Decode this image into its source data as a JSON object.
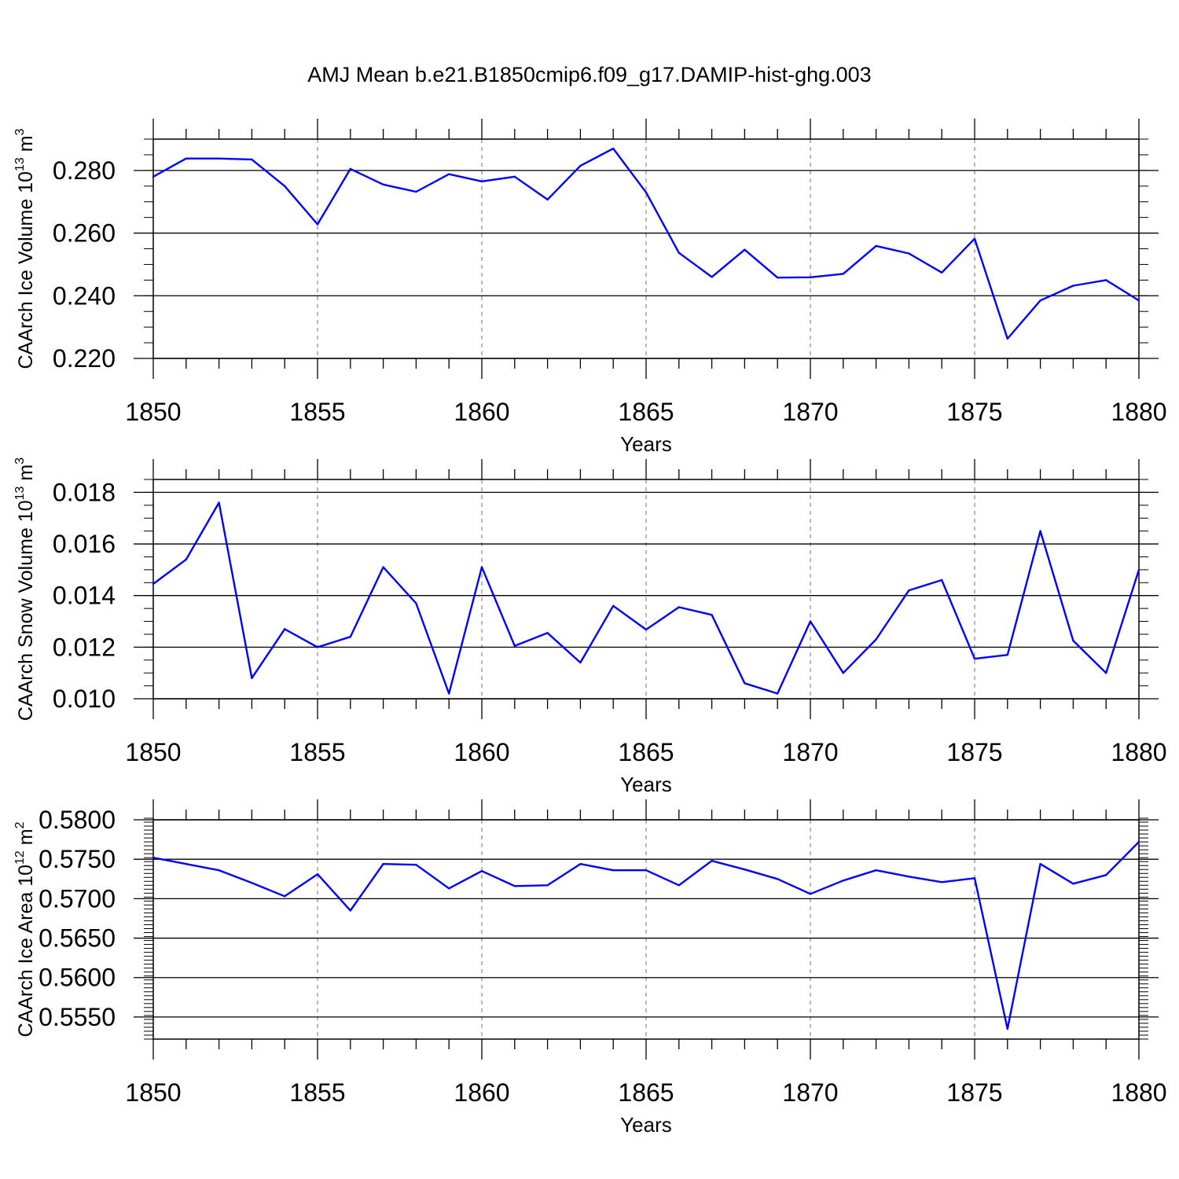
{
  "title": "AMJ Mean b.e21.B1850cmip6.f09_g17.DAMIP-hist-ghg.003",
  "colors": {
    "line": "#0000ff",
    "axis": "#000000",
    "grid": "#888888"
  },
  "chart_data": [
    {
      "type": "line",
      "ylabel": {
        "main": "CAArch Ice Volume 10",
        "exp": "13",
        "unit": "m",
        "unit_exp": "3"
      },
      "xlabel": "Years",
      "xlim": [
        1850,
        1880
      ],
      "ylim": [
        0.22,
        0.29
      ],
      "xticks": [
        "1850",
        "1855",
        "1860",
        "1865",
        "1870",
        "1875",
        "1880"
      ],
      "yticks": [
        "0.220",
        "0.240",
        "0.260",
        "0.280"
      ],
      "ytick_values": [
        0.22,
        0.24,
        0.26,
        0.28
      ],
      "grid": "vertical dashed at major x ticks",
      "x": [
        1850,
        1851,
        1852,
        1853,
        1854,
        1855,
        1856,
        1857,
        1858,
        1859,
        1860,
        1861,
        1862,
        1863,
        1864,
        1865,
        1866,
        1867,
        1868,
        1869,
        1870,
        1871,
        1872,
        1873,
        1874,
        1875,
        1876,
        1877,
        1878,
        1879,
        1880
      ],
      "values": [
        0.278,
        0.2838,
        0.2838,
        0.2835,
        0.275,
        0.2628,
        0.2805,
        0.2755,
        0.2732,
        0.2788,
        0.2765,
        0.278,
        0.2707,
        0.2815,
        0.287,
        0.273,
        0.2537,
        0.246,
        0.2547,
        0.2458,
        0.2459,
        0.247,
        0.2559,
        0.2535,
        0.2474,
        0.2582,
        0.2263,
        0.2385,
        0.2432,
        0.245,
        0.2385
      ]
    },
    {
      "type": "line",
      "ylabel": {
        "main": "CAArch Snow Volume 10",
        "exp": "13",
        "unit": "m",
        "unit_exp": "3"
      },
      "xlabel": "Years",
      "xlim": [
        1850,
        1880
      ],
      "ylim": [
        0.01,
        0.0185
      ],
      "xticks": [
        "1850",
        "1855",
        "1860",
        "1865",
        "1870",
        "1875",
        "1880"
      ],
      "yticks": [
        "0.010",
        "0.012",
        "0.014",
        "0.016",
        "0.018"
      ],
      "ytick_values": [
        0.01,
        0.012,
        0.014,
        0.016,
        0.018
      ],
      "grid": "vertical dashed at major x ticks",
      "x": [
        1850,
        1851,
        1852,
        1853,
        1854,
        1855,
        1856,
        1857,
        1858,
        1859,
        1860,
        1861,
        1862,
        1863,
        1864,
        1865,
        1866,
        1867,
        1868,
        1869,
        1870,
        1871,
        1872,
        1873,
        1874,
        1875,
        1876,
        1877,
        1878,
        1879,
        1880
      ],
      "values": [
        0.01445,
        0.0154,
        0.0176,
        0.0108,
        0.0127,
        0.012,
        0.0124,
        0.0151,
        0.0137,
        0.0102,
        0.0151,
        0.01205,
        0.01255,
        0.0114,
        0.0136,
        0.01268,
        0.01355,
        0.01325,
        0.0106,
        0.0102,
        0.013,
        0.011,
        0.0123,
        0.0142,
        0.0146,
        0.01155,
        0.0117,
        0.0165,
        0.01225,
        0.011,
        0.015
      ]
    },
    {
      "type": "line",
      "ylabel": {
        "main": "CAArch Ice Area 10",
        "exp": "12",
        "unit": "m",
        "unit_exp": "2"
      },
      "xlabel": "Years",
      "xlim": [
        1850,
        1880
      ],
      "ylim": [
        0.5522,
        0.58
      ],
      "xticks": [
        "1850",
        "1855",
        "1860",
        "1865",
        "1870",
        "1875",
        "1880"
      ],
      "yticks": [
        "0.5550",
        "0.5600",
        "0.5650",
        "0.5700",
        "0.5750",
        "0.5800"
      ],
      "ytick_values": [
        0.555,
        0.56,
        0.565,
        0.57,
        0.575,
        0.58
      ],
      "grid": "vertical dashed at major x ticks",
      "x": [
        1850,
        1851,
        1852,
        1853,
        1854,
        1855,
        1856,
        1857,
        1858,
        1859,
        1860,
        1861,
        1862,
        1863,
        1864,
        1865,
        1866,
        1867,
        1868,
        1869,
        1870,
        1871,
        1872,
        1873,
        1874,
        1875,
        1876,
        1877,
        1878,
        1879,
        1880
      ],
      "values": [
        0.5752,
        0.5744,
        0.5736,
        0.572,
        0.5703,
        0.5731,
        0.5685,
        0.5744,
        0.5743,
        0.5713,
        0.5735,
        0.5716,
        0.5717,
        0.5744,
        0.5736,
        0.5736,
        0.5717,
        0.5748,
        0.5737,
        0.5725,
        0.5706,
        0.5723,
        0.5736,
        0.5728,
        0.5721,
        0.5726,
        0.5535,
        0.5744,
        0.5719,
        0.573,
        0.5772
      ]
    }
  ]
}
